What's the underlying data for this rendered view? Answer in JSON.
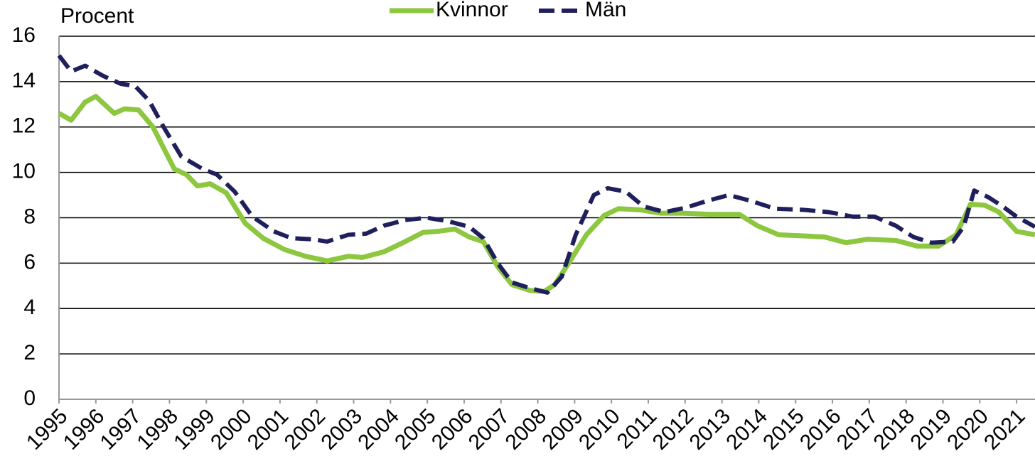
{
  "chart_data": {
    "type": "line",
    "y_label": "Procent",
    "xlim": [
      1995,
      2021.5
    ],
    "xticks": [
      1995,
      1996,
      1997,
      1998,
      1999,
      2000,
      2001,
      2002,
      2003,
      2004,
      2005,
      2006,
      2007,
      2008,
      2009,
      2010,
      2011,
      2012,
      2013,
      2014,
      2015,
      2016,
      2017,
      2018,
      2019,
      2020,
      2021
    ],
    "ylim": [
      0,
      16
    ],
    "yticks": [
      0,
      2,
      4,
      6,
      8,
      10,
      12,
      14,
      16
    ],
    "grid": true,
    "legend": "top",
    "series": [
      {
        "name": "Kvinnor",
        "color": "#8dc63f",
        "dashed": false,
        "x": [
          1995,
          1995.33,
          1995.71,
          1996,
          1996.5,
          1996.78,
          1997.16,
          1997.55,
          1998.13,
          1998.46,
          1998.76,
          1999.1,
          1999.54,
          2000.06,
          2000.54,
          2001.12,
          2001.7,
          2002.28,
          2002.86,
          2003.24,
          2003.82,
          2004.4,
          2004.88,
          2005.27,
          2005.75,
          2006.14,
          2006.52,
          2006.91,
          2007.3,
          2007.78,
          2008.17,
          2008.46,
          2008.84,
          2009.32,
          2009.8,
          2010.19,
          2010.77,
          2011.35,
          2011.93,
          2012.7,
          2013.47,
          2013.96,
          2014.54,
          2015.21,
          2015.79,
          2016.37,
          2016.95,
          2017.72,
          2018.3,
          2018.88,
          2019.36,
          2019.75,
          2020.14,
          2020.52,
          2021,
          2021.5
        ],
        "values": [
          12.6,
          12.3,
          13.1,
          13.35,
          12.6,
          12.8,
          12.75,
          12.0,
          10.15,
          9.9,
          9.4,
          9.5,
          9.1,
          7.75,
          7.1,
          6.6,
          6.3,
          6.1,
          6.3,
          6.25,
          6.5,
          6.95,
          7.35,
          7.4,
          7.5,
          7.15,
          6.95,
          5.85,
          5.05,
          4.8,
          4.75,
          5.05,
          6.0,
          7.25,
          8.1,
          8.4,
          8.35,
          8.2,
          8.2,
          8.15,
          8.15,
          7.65,
          7.25,
          7.2,
          7.15,
          6.9,
          7.05,
          7.0,
          6.75,
          6.75,
          7.25,
          8.6,
          8.55,
          8.25,
          7.4,
          7.25
        ]
      },
      {
        "name": "Män",
        "color": "#1f1f5c",
        "dashed": true,
        "x": [
          1995,
          1995.33,
          1995.71,
          1996.2,
          1996.68,
          1997.07,
          1997.45,
          1997.84,
          1998.32,
          1998.9,
          1999.29,
          1999.77,
          2000.25,
          2000.83,
          2001.31,
          2001.89,
          2002.28,
          2002.86,
          2003.34,
          2003.82,
          2004.4,
          2004.98,
          2005.56,
          2006.14,
          2006.52,
          2006.91,
          2007.3,
          2007.78,
          2008.26,
          2008.65,
          2009.03,
          2009.52,
          2009.9,
          2010.39,
          2010.87,
          2011.45,
          2012.03,
          2012.61,
          2013.19,
          2013.77,
          2014.44,
          2015.21,
          2015.89,
          2016.56,
          2017.14,
          2017.72,
          2018.2,
          2018.69,
          2019.27,
          2019.56,
          2019.85,
          2020.24,
          2020.62,
          2021,
          2021.5
        ],
        "values": [
          15.15,
          14.45,
          14.7,
          14.25,
          13.9,
          13.8,
          13.15,
          12.0,
          10.7,
          10.15,
          9.9,
          9.15,
          8.05,
          7.4,
          7.1,
          7.05,
          6.95,
          7.25,
          7.3,
          7.65,
          7.9,
          8.0,
          7.85,
          7.6,
          7.1,
          6.0,
          5.15,
          4.9,
          4.7,
          5.4,
          7.25,
          9.0,
          9.3,
          9.15,
          8.5,
          8.25,
          8.45,
          8.75,
          9.0,
          8.75,
          8.4,
          8.35,
          8.25,
          8.05,
          8.05,
          7.65,
          7.15,
          6.9,
          6.95,
          7.6,
          9.2,
          8.9,
          8.5,
          8.05,
          7.6
        ]
      }
    ]
  }
}
